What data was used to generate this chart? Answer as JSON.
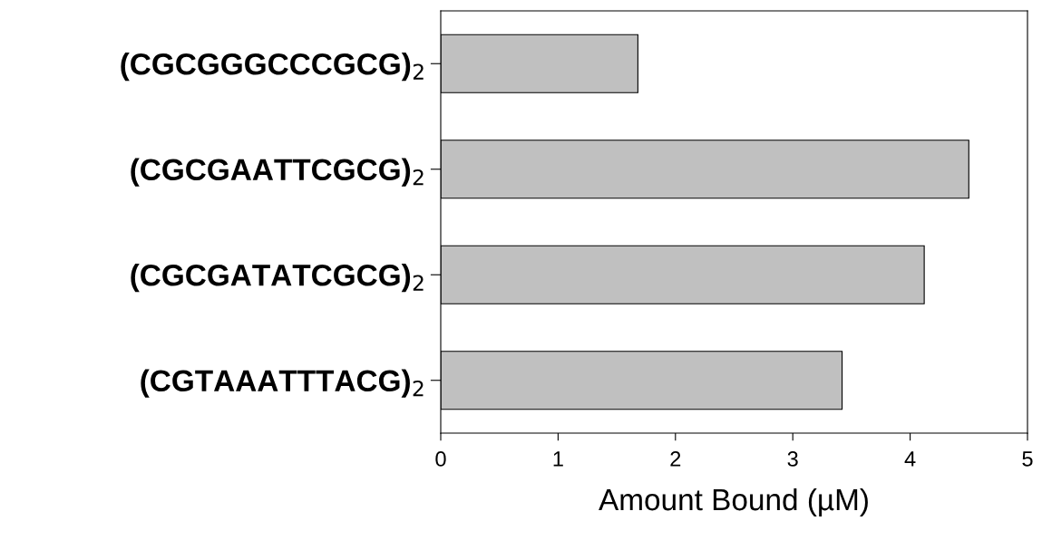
{
  "chart_data": {
    "type": "bar",
    "orientation": "horizontal",
    "xlabel": "Amount Bound (µM)",
    "categories": [
      "(CGCGGGCCCGCG)$_{2}$",
      "(CGCGAATTCGCG)$_{2}$",
      "(CGCGATATCGCG)$_{2}$",
      "(CGTAAATTTACG)$_{2}$"
    ],
    "values": [
      1.68,
      4.5,
      4.12,
      3.42
    ],
    "color": "#c0c0c0",
    "xlim": [
      0,
      5
    ],
    "xticks": [
      0,
      1,
      2,
      3,
      4,
      5
    ],
    "grid": false,
    "legend": false
  }
}
